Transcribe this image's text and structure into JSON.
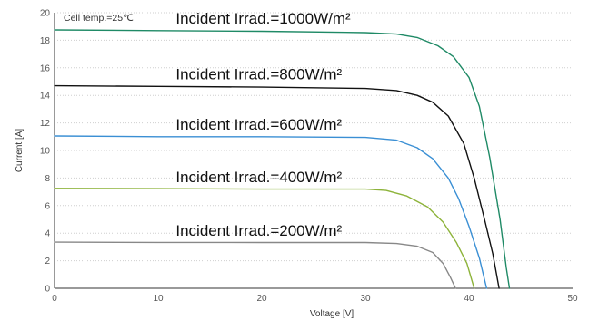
{
  "chart_data": {
    "type": "line",
    "title": "",
    "annotation": "Cell temp.=25℃",
    "xlabel": "Voltage [V]",
    "ylabel": "Current [A]",
    "xlim": [
      0,
      50
    ],
    "ylim": [
      0,
      20
    ],
    "xticks": [
      0,
      10,
      20,
      30,
      40,
      50
    ],
    "yticks": [
      0,
      2,
      4,
      6,
      8,
      10,
      12,
      14,
      16,
      18,
      20
    ],
    "grid": "horizontal dotted",
    "series": [
      {
        "name": "Incident Irrad.=1000W/m²",
        "color": "#1f8a66",
        "points": [
          [
            0,
            18.75
          ],
          [
            10,
            18.7
          ],
          [
            20,
            18.65
          ],
          [
            30,
            18.55
          ],
          [
            33,
            18.45
          ],
          [
            35,
            18.2
          ],
          [
            37,
            17.6
          ],
          [
            38.5,
            16.8
          ],
          [
            40,
            15.3
          ],
          [
            41,
            13.2
          ],
          [
            42,
            9.5
          ],
          [
            43,
            5.0
          ],
          [
            43.6,
            1.5
          ],
          [
            43.9,
            0
          ]
        ]
      },
      {
        "name": "Incident Irrad.=800W/m²",
        "color": "#111111",
        "points": [
          [
            0,
            14.7
          ],
          [
            10,
            14.65
          ],
          [
            20,
            14.6
          ],
          [
            30,
            14.5
          ],
          [
            33,
            14.35
          ],
          [
            35,
            14.0
          ],
          [
            36.5,
            13.5
          ],
          [
            38,
            12.5
          ],
          [
            39.5,
            10.5
          ],
          [
            40.5,
            8.0
          ],
          [
            41.5,
            5.0
          ],
          [
            42.3,
            2.5
          ],
          [
            42.9,
            0
          ]
        ]
      },
      {
        "name": "Incident Irrad.=600W/m²",
        "color": "#3a8fd4",
        "points": [
          [
            0,
            11.05
          ],
          [
            10,
            11.0
          ],
          [
            20,
            11.0
          ],
          [
            30,
            10.95
          ],
          [
            33,
            10.75
          ],
          [
            35,
            10.2
          ],
          [
            36.5,
            9.4
          ],
          [
            38,
            8.0
          ],
          [
            39,
            6.5
          ],
          [
            40,
            4.5
          ],
          [
            41,
            2.2
          ],
          [
            41.7,
            0
          ]
        ]
      },
      {
        "name": "Incident Irrad.=400W/m²",
        "color": "#8db33a",
        "points": [
          [
            0,
            7.25
          ],
          [
            10,
            7.23
          ],
          [
            20,
            7.2
          ],
          [
            30,
            7.2
          ],
          [
            32,
            7.1
          ],
          [
            34,
            6.7
          ],
          [
            36,
            5.9
          ],
          [
            37.5,
            4.8
          ],
          [
            38.8,
            3.3
          ],
          [
            39.8,
            1.8
          ],
          [
            40.5,
            0
          ]
        ]
      },
      {
        "name": "Incident Irrad.=200W/m²",
        "color": "#888888",
        "points": [
          [
            0,
            3.35
          ],
          [
            10,
            3.33
          ],
          [
            20,
            3.32
          ],
          [
            30,
            3.32
          ],
          [
            33,
            3.25
          ],
          [
            35,
            3.05
          ],
          [
            36.5,
            2.6
          ],
          [
            37.5,
            1.8
          ],
          [
            38.2,
            0.8
          ],
          [
            38.7,
            0
          ]
        ]
      }
    ]
  }
}
